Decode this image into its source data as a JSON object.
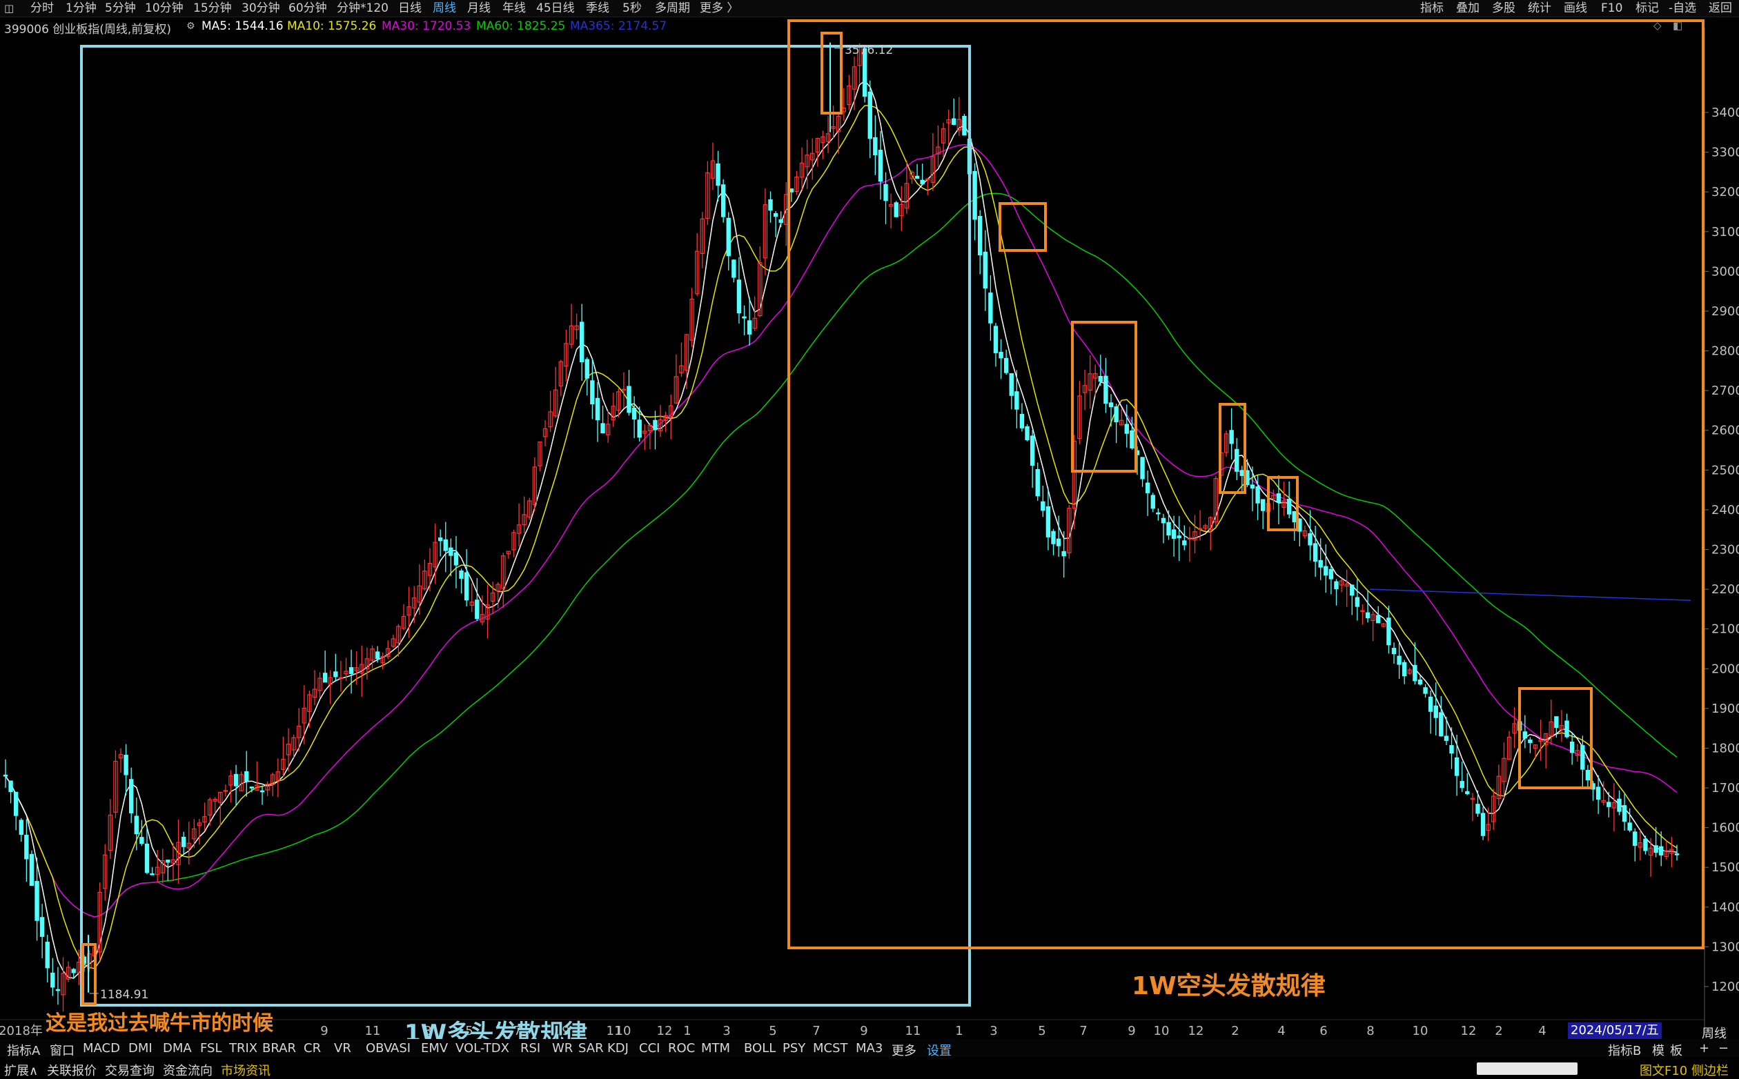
{
  "toolbar": {
    "left_icon": "window-icon",
    "periods": [
      "分时",
      "1分钟",
      "5分钟",
      "10分钟",
      "15分钟",
      "30分钟",
      "60分钟",
      "分钟*120",
      "日线",
      "周线",
      "月线",
      "年线",
      "45日线",
      "季线",
      "5秒",
      "多周期",
      "更多 〉"
    ],
    "active_period": "周线",
    "right_items": [
      "指标",
      "叠加",
      "多股",
      "统计",
      "画线",
      "F10",
      "标记",
      "-自选",
      "返回"
    ]
  },
  "info": {
    "code_name": "399006 创业板指(周线,前复权)",
    "ma5": "MA5: 1544.16",
    "ma10": "MA10: 1575.26",
    "ma30": "MA30: 1720.53",
    "ma60": "MA60: 1825.25",
    "ma365": "MA365: 2174.57",
    "colors": {
      "ma5": "#ffffff",
      "ma10": "#e6e600",
      "ma30": "#e600e6",
      "ma60": "#00d000",
      "ma365": "#2233dd"
    }
  },
  "chart_data": {
    "type": "candlestick",
    "y_ticks": [
      1200,
      1300,
      1400,
      1500,
      1600,
      1700,
      1800,
      1900,
      2000,
      2100,
      2200,
      2300,
      2400,
      2500,
      2600,
      2700,
      2800,
      2900,
      3000,
      3100,
      3200,
      3300,
      3400
    ],
    "ylim": [
      1150,
      3600
    ],
    "x_ticks": [
      "2018年",
      "9",
      "11",
      "3",
      "5",
      "7",
      "9",
      "11",
      "10",
      "12",
      "1",
      "3",
      "5",
      "7",
      "9",
      "11",
      "1",
      "3",
      "5",
      "7",
      "9",
      "10",
      "12",
      "2",
      "4",
      "6",
      "8",
      "10",
      "12",
      "2",
      "4"
    ],
    "current_date": "2024/05/17/五",
    "period_label": "周线",
    "high_label": "3576.12",
    "low_label": "1184.91",
    "high_value": 3576.12,
    "low_value": 1184.91,
    "series": [
      {
        "name": "MA5"
      },
      {
        "name": "MA10"
      },
      {
        "name": "MA30"
      },
      {
        "name": "MA60"
      },
      {
        "name": "MA365"
      }
    ],
    "up_color": "#ff3232",
    "down_color": "#54ffff"
  },
  "annotations": {
    "bull_caption": "1W多头发散规律",
    "bear_caption": "1W空头发散规律",
    "note": "这是我过去喊牛市的时候",
    "bull_color": "#8fd8ea",
    "bear_color": "#f08a24"
  },
  "bottom_tabs": [
    "指标A",
    "窗口",
    "MACD",
    "DMI",
    "DMA",
    "FSL",
    "TRIX",
    "BRAR",
    "CR",
    "VR",
    "OBV",
    "ASI",
    "EMV",
    "VOL-TDX",
    "RSI",
    "WR",
    "SAR",
    "KDJ",
    "CCI",
    "ROC",
    "MTM",
    "BOLL",
    "PSY",
    "MCST",
    "MA3",
    "更多",
    "设置"
  ],
  "bottom_right": [
    "指标B",
    "模",
    "板",
    "+",
    "−"
  ],
  "status": {
    "items": [
      "扩展∧",
      "关联报价",
      "交易查询",
      "资金流向",
      "市场资讯"
    ],
    "right": "图文F10 侧边栏"
  }
}
